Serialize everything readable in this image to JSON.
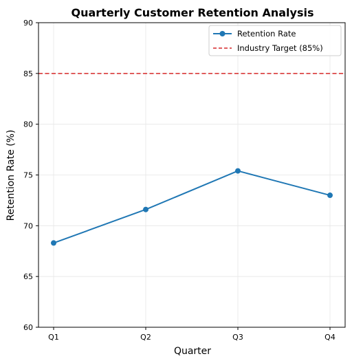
{
  "chart_data": {
    "type": "line",
    "title": "Quarterly Customer Retention Analysis",
    "xlabel": "Quarter",
    "ylabel": "Retention Rate (%)",
    "categories": [
      "Q1",
      "Q2",
      "Q3",
      "Q4"
    ],
    "series": [
      {
        "name": "Retention Rate",
        "values": [
          68.3,
          71.6,
          75.4,
          73.0
        ],
        "color": "#1f77b4",
        "marker": "circle"
      }
    ],
    "reference_lines": [
      {
        "name": "Industry Target (85%)",
        "value": 85,
        "color": "#d62728",
        "style": "dashed"
      }
    ],
    "ylim": [
      60,
      90
    ],
    "yticks": [
      60,
      65,
      70,
      75,
      80,
      85,
      90
    ],
    "grid": true,
    "legend_position": "top-right"
  }
}
